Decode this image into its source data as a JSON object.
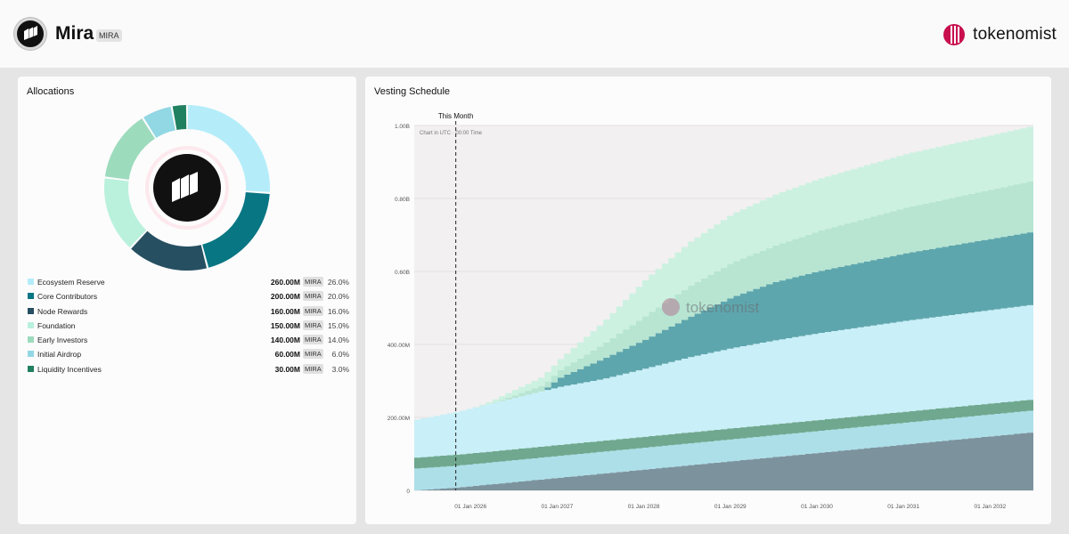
{
  "header": {
    "token_name": "Mira",
    "token_symbol": "MIRA",
    "brand": "tokenomist"
  },
  "allocations": {
    "title": "Allocations",
    "items": [
      {
        "label": "Ecosystem Reserve",
        "amount": "260.00M",
        "symbol": "MIRA",
        "pct": "26.0%",
        "value": 260,
        "color": "#b4edf9"
      },
      {
        "label": "Core Contributors",
        "amount": "200.00M",
        "symbol": "MIRA",
        "pct": "20.0%",
        "value": 200,
        "color": "#087683"
      },
      {
        "label": "Node Rewards",
        "amount": "160.00M",
        "symbol": "MIRA",
        "pct": "16.0%",
        "value": 160,
        "color": "#264f61"
      },
      {
        "label": "Foundation",
        "amount": "150.00M",
        "symbol": "MIRA",
        "pct": "15.0%",
        "value": 150,
        "color": "#b9f1dd"
      },
      {
        "label": "Early Investors",
        "amount": "140.00M",
        "symbol": "MIRA",
        "pct": "14.0%",
        "value": 140,
        "color": "#9ddbbd"
      },
      {
        "label": "Initial Airdrop",
        "amount": "60.00M",
        "symbol": "MIRA",
        "pct": "6.0%",
        "value": 60,
        "color": "#92d7e4"
      },
      {
        "label": "Liquidity Incentives",
        "amount": "30.00M",
        "symbol": "MIRA",
        "pct": "3.0%",
        "value": 30,
        "color": "#208060"
      }
    ]
  },
  "vesting": {
    "title": "Vesting Schedule",
    "marker_label": "This Month",
    "timezone_note": "Chart in UTC · 00:00 Time",
    "watermark": "tokenomist"
  },
  "chart_data": {
    "type": "area",
    "stacked": true,
    "title": "Vesting Schedule",
    "x_start": 2025.35,
    "x_end": 2032.5,
    "ylim": [
      0,
      1000
    ],
    "y_unit": "M",
    "y_ticks": [
      0,
      200,
      400,
      600,
      800,
      1000
    ],
    "y_tick_labels": [
      "0",
      "200.00M",
      "400.00M",
      "0.60B",
      "0.80B",
      "1.00B"
    ],
    "x_ticks": [
      2026,
      2027,
      2028,
      2029,
      2030,
      2031,
      2032
    ],
    "x_tick_labels": [
      "01 Jan 2026",
      "01 Jan 2027",
      "01 Jan 2028",
      "01 Jan 2029",
      "01 Jan 2030",
      "01 Jan 2031",
      "01 Jan 2032"
    ],
    "marker_x": 2025.83,
    "series": [
      {
        "name": "Node Rewards",
        "color": "#7c939e",
        "points": [
          [
            2025.35,
            0
          ],
          [
            2025.83,
            8
          ],
          [
            2032.5,
            160
          ]
        ]
      },
      {
        "name": "Initial Airdrop",
        "color": "#addfe9",
        "points": [
          [
            2025.35,
            60
          ],
          [
            2032.5,
            60
          ]
        ]
      },
      {
        "name": "Liquidity Incentives",
        "color": "#6fa88f",
        "points": [
          [
            2025.35,
            30
          ],
          [
            2032.5,
            30
          ]
        ]
      },
      {
        "name": "Ecosystem Reserve",
        "color": "#c9eff8",
        "points": [
          [
            2025.35,
            104
          ],
          [
            2025.83,
            118
          ],
          [
            2027.0,
            159
          ],
          [
            2027.5,
            169
          ],
          [
            2028.0,
            187
          ],
          [
            2028.5,
            206
          ],
          [
            2029.0,
            220
          ],
          [
            2029.5,
            230
          ],
          [
            2030.0,
            238
          ],
          [
            2031.0,
            249
          ],
          [
            2032.5,
            260
          ]
        ]
      },
      {
        "name": "Core Contributors",
        "color": "#5ea6ad",
        "points": [
          [
            2025.35,
            0
          ],
          [
            2026.8,
            0
          ],
          [
            2027.0,
            25
          ],
          [
            2027.5,
            55
          ],
          [
            2028.0,
            80
          ],
          [
            2028.5,
            110
          ],
          [
            2029.0,
            140
          ],
          [
            2029.5,
            160
          ],
          [
            2030.0,
            170
          ],
          [
            2031.0,
            185
          ],
          [
            2032.5,
            200
          ]
        ]
      },
      {
        "name": "Early Investors",
        "color": "#b7e5d2",
        "points": [
          [
            2025.35,
            0
          ],
          [
            2026.2,
            0
          ],
          [
            2027.0,
            20
          ],
          [
            2027.5,
            40
          ],
          [
            2028.0,
            65
          ],
          [
            2028.5,
            85
          ],
          [
            2029.0,
            95
          ],
          [
            2029.5,
            100
          ],
          [
            2030.0,
            110
          ],
          [
            2031.0,
            125
          ],
          [
            2032.5,
            140
          ]
        ]
      },
      {
        "name": "Foundation",
        "color": "#ccf1e1",
        "points": [
          [
            2025.35,
            0
          ],
          [
            2026.0,
            0
          ],
          [
            2027.0,
            30
          ],
          [
            2027.5,
            60
          ],
          [
            2028.0,
            100
          ],
          [
            2028.5,
            120
          ],
          [
            2029.0,
            133
          ],
          [
            2029.5,
            140
          ],
          [
            2030.0,
            143
          ],
          [
            2031.0,
            147
          ],
          [
            2032.5,
            150
          ]
        ]
      }
    ]
  }
}
